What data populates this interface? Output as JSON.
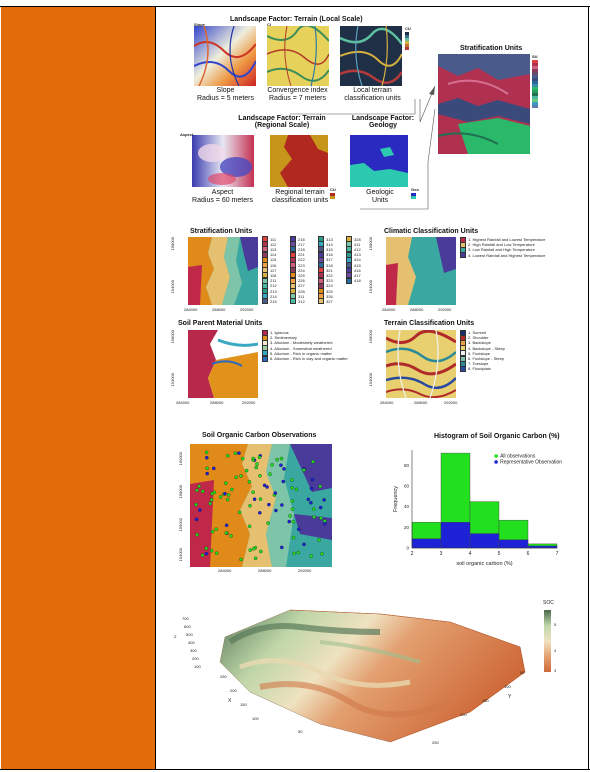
{
  "colors": {
    "left_bar": "#e36c0a",
    "pink": "#b02a53",
    "orange": "#e39a3a",
    "teal": "#3fa6a0",
    "cream": "#f3e2b0"
  },
  "fig1": {
    "title_local": "Landscape Factor: Terrain (Local Scale)",
    "slope_cap1": "Slope",
    "slope_cap2": "Radius = 5 meters",
    "conv_cap1": "Convergence index",
    "conv_cap2": "Radius = 7 meters",
    "local_cap1": "Local terrain",
    "local_cap2": "classification units",
    "slope_key": "Slope",
    "conv_key": "CI",
    "cu_key": "CU",
    "title_regional_1": "Landscape Factor: Terrain",
    "title_regional_2": "(Regional Scale)",
    "aspect_key": "Aspect",
    "aspect_cap1": "Aspect",
    "aspect_cap2": "Radius = 60 meters",
    "regional_cap1": "Regional terrain",
    "regional_cap2": "classification units",
    "cu_key2": "CU",
    "title_geology_1": "Landscape Factor:",
    "title_geology_2": "Geology",
    "geo_cap1": "Geologic",
    "geo_cap2": "Units",
    "geo_key": "Geo",
    "strat_title": "Stratification Units",
    "su_key": "SU"
  },
  "fig2": {
    "strat_title": "Stratification Units",
    "strat_legend": [
      "111",
      "112",
      "113",
      "114",
      "115",
      "116",
      "117",
      "118",
      "211",
      "212",
      "213",
      "214",
      "215",
      "216",
      "217",
      "218",
      "221",
      "222",
      "223",
      "224",
      "225",
      "226",
      "227",
      "228",
      "311",
      "312",
      "313",
      "314",
      "315",
      "316",
      "317",
      "318",
      "321",
      "322",
      "323",
      "324",
      "325",
      "326",
      "327",
      "328",
      "411",
      "412",
      "413",
      "414",
      "415",
      "416",
      "417",
      "418"
    ],
    "climate_title": "Climatic Classification Units",
    "climate_legend": [
      "1. Highest Rainfall and Lowest Temperature",
      "2. High Rainfall and Low Temperature",
      "3. Low Rainfall and High Temperature",
      "4. Lowest Rainfall and Highest Temperature"
    ],
    "parent_title": "Soil Parent Material Units",
    "parent_legend": [
      "1. Igneous",
      "2. Sedimentary",
      "3. Alluvium - Moderately weathered",
      "4. Alluvium - Somewhat weathered",
      "5. Alluvium - Rich in organic matter",
      "6. Alluvium - Rich in clay and organic matter"
    ],
    "terrain_title": "Terrain Classification Units",
    "terrain_legend": [
      "1. Summit",
      "2. Shoulder",
      "3. Backslope",
      "4. Backslope - Steep",
      "5. Footslope",
      "6. Footslope - Steep",
      "7. Toeslope",
      "8. Floodplain"
    ],
    "x_ticks": [
      "284000",
      "288000",
      "292000"
    ],
    "y_ticks": [
      "154000",
      "158000"
    ]
  },
  "fig3": {
    "soc_title": "Soil Organic Carbon Observations",
    "soc_x_ticks": [
      "284000",
      "288000",
      "292000"
    ],
    "soc_y_ticks": [
      "154000",
      "156000",
      "158000",
      "160000"
    ],
    "hist_title": "Histogram of Soil Organic Carbon (%)",
    "hist_xlabel": "soil organic carbon (%)",
    "hist_ylabel": "Frequency",
    "hist_legend_all": "All observations",
    "hist_legend_rep": "Representative Observations"
  },
  "chart_data": {
    "type": "bar",
    "title": "Histogram of Soil Organic Carbon (%)",
    "xlabel": "soil organic carbon (%)",
    "ylabel": "Frequency",
    "bins": [
      [
        2,
        3
      ],
      [
        3,
        4
      ],
      [
        4,
        5
      ],
      [
        5,
        6
      ],
      [
        6,
        7
      ]
    ],
    "x_ticks": [
      2,
      3,
      4,
      5,
      6,
      7
    ],
    "y_ticks": [
      0,
      20,
      40,
      60,
      80
    ],
    "ylim": [
      0,
      95
    ],
    "series": [
      {
        "name": "All observations",
        "values": [
          25,
          92,
          45,
          27,
          4
        ],
        "color": "#22e01e"
      },
      {
        "name": "Representative Observations",
        "values": [
          9,
          25,
          14,
          8,
          2
        ],
        "color": "#1d22d6"
      }
    ],
    "legend_position": "top-right"
  },
  "fig4": {
    "soc_label": "SOC",
    "soc_ticks": [
      "5",
      "4",
      "3"
    ],
    "y_ticks": [
      "700",
      "600",
      "500",
      "400",
      "300",
      "200",
      "100"
    ],
    "x_ticks": [
      "250",
      "200",
      "150",
      "100",
      "50"
    ],
    "z_ticks": [
      "50",
      "100",
      "150",
      "200",
      "250"
    ],
    "x_label": "X",
    "y_label": "Y",
    "z_axis_label": "Z"
  }
}
